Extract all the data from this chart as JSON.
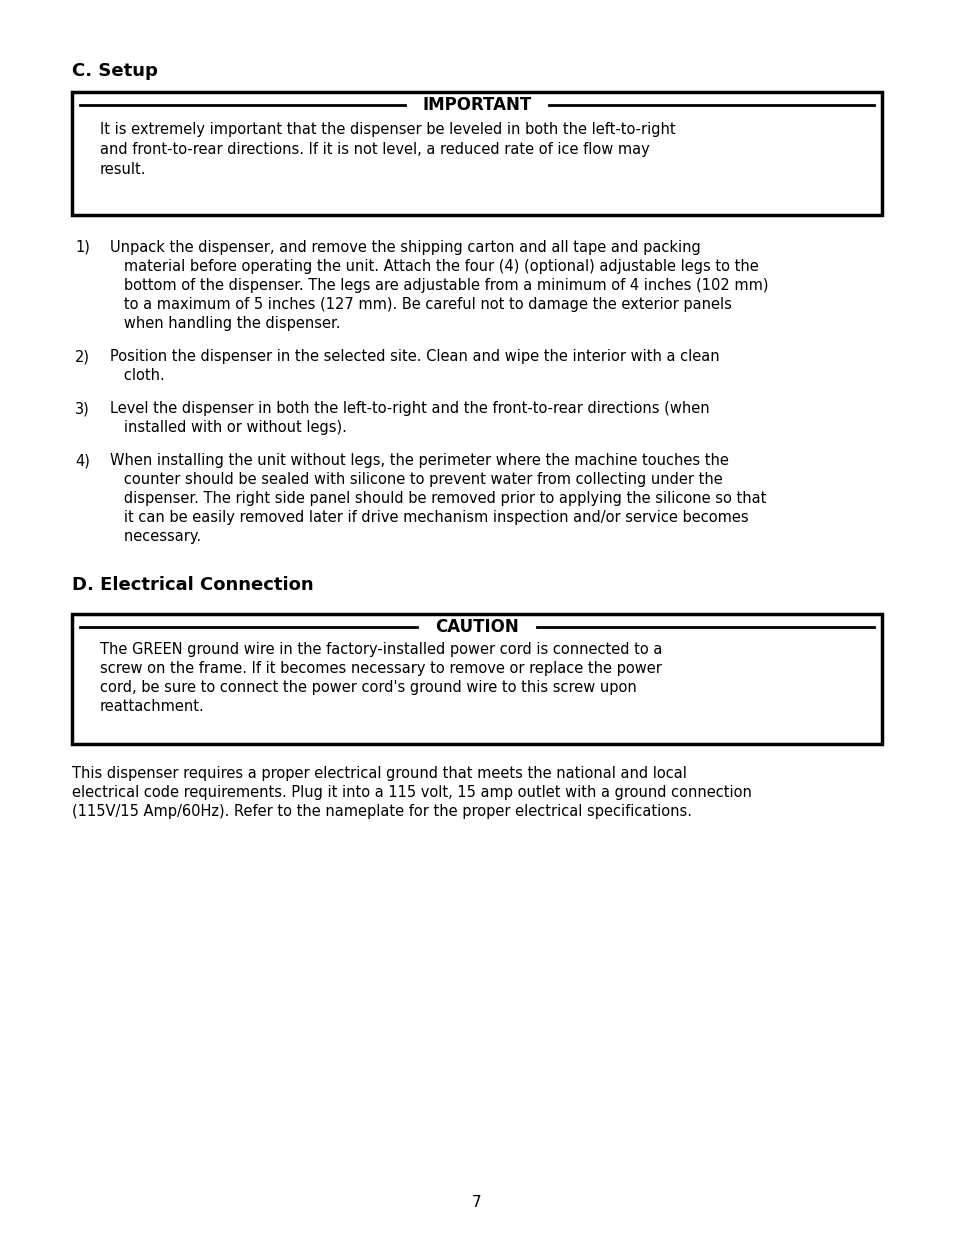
{
  "bg_color": "#ffffff",
  "page_number": "7",
  "section_c_title": "C. Setup",
  "important_label": "IMPORTANT",
  "important_text_line1": "It is extremely important that the dispenser be leveled in both the left-to-right",
  "important_text_line2": "and front-to-rear directions. If it is not level, a reduced rate of ice flow may",
  "important_text_line3": "result.",
  "item1_num": "1)",
  "item1_lines": [
    "Unpack the dispenser, and remove the shipping carton and all tape and packing",
    "   material before operating the unit. Attach the four (4) (optional) adjustable legs to the",
    "   bottom of the dispenser. The legs are adjustable from a minimum of 4 inches (102 mm)",
    "   to a maximum of 5 inches (127 mm). Be careful not to damage the exterior panels",
    "   when handling the dispenser."
  ],
  "item2_num": "2)",
  "item2_lines": [
    "Position the dispenser in the selected site. Clean and wipe the interior with a clean",
    "   cloth."
  ],
  "item3_num": "3)",
  "item3_lines": [
    "Level the dispenser in both the left-to-right and the front-to-rear directions (when",
    "   installed with or without legs)."
  ],
  "item4_num": "4)",
  "item4_lines": [
    "When installing the unit without legs, the perimeter where the machine touches the",
    "   counter should be sealed with silicone to prevent water from collecting under the",
    "   dispenser. The right side panel should be removed prior to applying the silicone so that",
    "   it can be easily removed later if drive mechanism inspection and/or service becomes",
    "   necessary."
  ],
  "section_d_title": "D. Electrical Connection",
  "caution_label": "CAUTION",
  "caution_text_line1": "The GREEN ground wire in the factory-installed power cord is connected to a",
  "caution_text_line2": "screw on the frame. If it becomes necessary to remove or replace the power",
  "caution_text_line3": "cord, be sure to connect the power cord's ground wire to this screw upon",
  "caution_text_line4": "reattachment.",
  "closing_line1": "This dispenser requires a proper electrical ground that meets the national and local",
  "closing_line2": "electrical code requirements. Plug it into a 115 volt, 15 amp outlet with a ground connection",
  "closing_line3": "(115V/15 Amp/60Hz). Refer to the nameplate for the proper electrical specifications."
}
